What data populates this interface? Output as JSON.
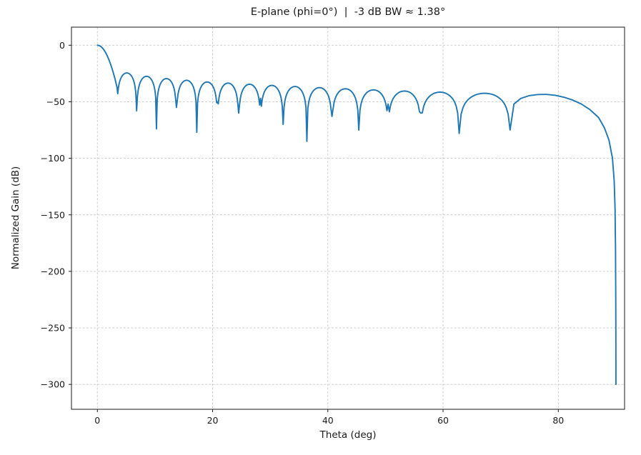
{
  "chart_data": {
    "type": "line",
    "title": "E-plane (phi=0°)  |  -3 dB BW ≈ 1.38°",
    "xlabel": "Theta (deg)",
    "ylabel": "Normalized Gain (dB)",
    "xlim": [
      -4.5,
      91.5
    ],
    "ylim": [
      -322,
      16
    ],
    "xticks": [
      0,
      20,
      40,
      60,
      80
    ],
    "yticks": [
      0,
      -50,
      -100,
      -150,
      -200,
      -250,
      -300
    ],
    "grid": true,
    "legend": "none",
    "line_color": "#1f77b4",
    "beamwidth_3db_deg": 1.38,
    "main_peak": {
      "theta_deg": 0,
      "gain_db": 0
    },
    "null_thetas_deg": [
      3.4,
      6.81,
      10.25,
      13.72,
      17.25,
      20.84,
      24.52,
      28.31,
      32.24,
      36.36,
      40.71,
      45.37,
      50.46,
      56.13,
      62.79,
      71.63
    ],
    "null_depths_db": [
      -37,
      -58,
      -74,
      -55,
      -77,
      -50,
      -60,
      -47,
      -70,
      -85,
      -63,
      -75,
      -52,
      -60,
      -78,
      -75
    ],
    "sidelobe_peaks_db": [
      -24.5,
      -27.5,
      -29.5,
      -31,
      -32.5,
      -33.5,
      -34.5,
      -35.5,
      -36.5,
      -37.5,
      -38.5,
      -39.5,
      -40.5,
      -41.5,
      -42.5
    ],
    "endfire_tail": [
      [
        72.3,
        -52
      ],
      [
        73.5,
        -47
      ],
      [
        75,
        -44.5
      ],
      [
        76.5,
        -43.6
      ],
      [
        78,
        -43.5
      ],
      [
        79.5,
        -44.3
      ],
      [
        81,
        -46
      ],
      [
        82.5,
        -48.5
      ],
      [
        84,
        -52
      ],
      [
        85.5,
        -57
      ],
      [
        87,
        -64
      ],
      [
        88,
        -73
      ],
      [
        88.8,
        -84
      ],
      [
        89.4,
        -100
      ],
      [
        89.7,
        -120
      ],
      [
        89.85,
        -145
      ],
      [
        89.93,
        -180
      ],
      [
        89.97,
        -220
      ],
      [
        89.99,
        -260
      ],
      [
        90,
        -300
      ]
    ]
  }
}
